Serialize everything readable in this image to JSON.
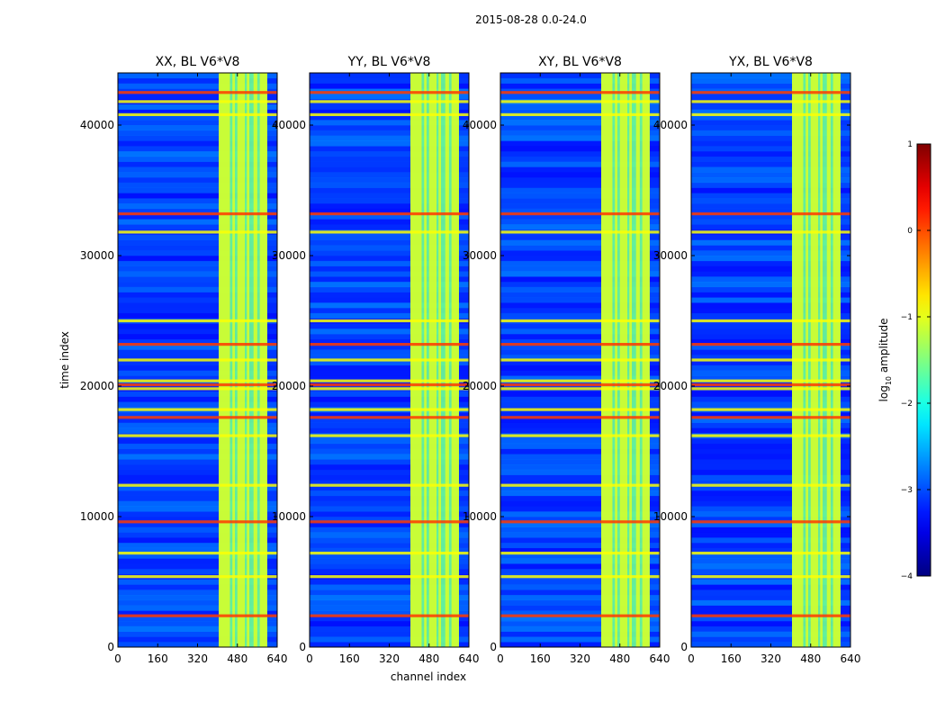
{
  "figure": {
    "title": "2015-08-28 0.0-24.0",
    "xlabel": "channel index",
    "ylabel": "time index"
  },
  "chart_data": {
    "type": "heatmap",
    "title": "2015-08-28 0.0-24.0",
    "xlabel": "channel index",
    "ylabel": "time index",
    "xlim": [
      0,
      640
    ],
    "ylim": [
      0,
      44000
    ],
    "xticks": [
      0,
      160,
      320,
      480,
      640
    ],
    "yticks": [
      0,
      10000,
      20000,
      30000,
      40000
    ],
    "panels": [
      {
        "title": "XX, BL V6*V8",
        "product": "XX"
      },
      {
        "title": "YY, BL V6*V8",
        "product": "YY"
      },
      {
        "title": "XY, BL V6*V8",
        "product": "XY"
      },
      {
        "title": "YX, BL V6*V8",
        "product": "YX"
      }
    ],
    "rfi_channel_band": [
      405,
      600
    ],
    "bright_band_channels": [
      [
        405,
        450
      ],
      [
        460,
        470
      ],
      [
        480,
        510
      ],
      [
        518,
        528
      ],
      [
        545,
        560
      ],
      [
        570,
        600
      ]
    ],
    "hot_time_rows": [
      2400,
      5400,
      7200,
      9600,
      12400,
      16200,
      17600,
      18200,
      19800,
      20100,
      20400,
      22000,
      23200,
      25000,
      31800,
      33200,
      40800,
      41800,
      42500
    ],
    "colorbar": {
      "label": "log10 amplitude",
      "label_main": "log",
      "label_sub": "10",
      "label_rest": " amplitude",
      "vmin": -4,
      "vmax": 1,
      "ticks": [
        1,
        0,
        -1,
        -2,
        -3,
        -4
      ],
      "tick_labels": [
        "1",
        "0",
        "−1",
        "−2",
        "−3",
        "−4"
      ],
      "colormap": "jet"
    }
  }
}
